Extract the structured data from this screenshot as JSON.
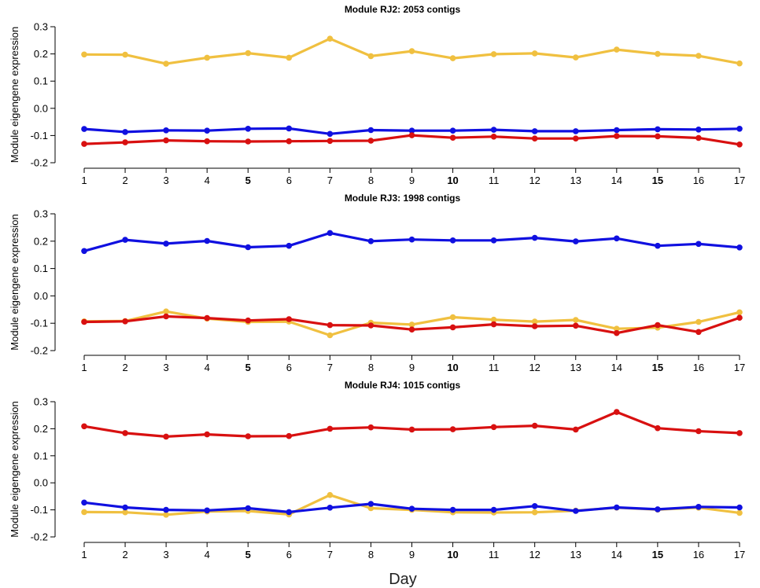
{
  "xlabel": "Day",
  "colors": {
    "yellow": "#f0c040",
    "blue": "#1010e0",
    "red": "#d81010"
  },
  "bold_x_ticks": [
    "5",
    "10",
    "15"
  ],
  "chart_data": [
    {
      "type": "line",
      "title": "Module RJ2: 2053 contigs",
      "ylabel": "Module eigengene expression",
      "xlabel": "",
      "x": [
        "1",
        "2",
        "3",
        "4",
        "5",
        "6",
        "7",
        "8",
        "9",
        "10",
        "11",
        "12",
        "13",
        "14",
        "15",
        "16",
        "17"
      ],
      "ylim": [
        -0.2,
        0.3
      ],
      "yticks": [
        "-0.2",
        "-0.1",
        "0.0",
        "0.1",
        "0.2",
        "0.3"
      ],
      "series": [
        {
          "color": "yellow",
          "values": [
            0.198,
            0.197,
            0.164,
            0.186,
            0.203,
            0.186,
            0.256,
            0.192,
            0.21,
            0.184,
            0.199,
            0.202,
            0.187,
            0.216,
            0.2,
            0.193,
            0.165
          ]
        },
        {
          "color": "blue",
          "values": [
            -0.076,
            -0.087,
            -0.081,
            -0.082,
            -0.075,
            -0.074,
            -0.094,
            -0.08,
            -0.082,
            -0.082,
            -0.079,
            -0.084,
            -0.084,
            -0.08,
            -0.077,
            -0.078,
            -0.075
          ]
        },
        {
          "color": "red",
          "values": [
            -0.131,
            -0.125,
            -0.118,
            -0.121,
            -0.122,
            -0.121,
            -0.12,
            -0.119,
            -0.099,
            -0.108,
            -0.104,
            -0.111,
            -0.111,
            -0.102,
            -0.103,
            -0.109,
            -0.133
          ]
        }
      ]
    },
    {
      "type": "line",
      "title": "Module RJ3: 1998 contigs",
      "ylabel": "Module eigengene expression",
      "xlabel": "",
      "x": [
        "1",
        "2",
        "3",
        "4",
        "5",
        "6",
        "7",
        "8",
        "9",
        "10",
        "11",
        "12",
        "13",
        "14",
        "15",
        "16",
        "17"
      ],
      "ylim": [
        -0.2,
        0.3
      ],
      "yticks": [
        "-0.2",
        "-0.1",
        "0.0",
        "0.1",
        "0.2",
        "0.3"
      ],
      "series": [
        {
          "color": "yellow",
          "values": [
            -0.093,
            -0.092,
            -0.057,
            -0.083,
            -0.095,
            -0.094,
            -0.144,
            -0.098,
            -0.105,
            -0.078,
            -0.087,
            -0.094,
            -0.088,
            -0.12,
            -0.116,
            -0.095,
            -0.06
          ]
        },
        {
          "color": "blue",
          "values": [
            0.164,
            0.205,
            0.191,
            0.201,
            0.178,
            0.183,
            0.23,
            0.2,
            0.206,
            0.203,
            0.203,
            0.212,
            0.199,
            0.21,
            0.183,
            0.19,
            0.177
          ]
        },
        {
          "color": "red",
          "values": [
            -0.095,
            -0.093,
            -0.075,
            -0.081,
            -0.09,
            -0.085,
            -0.107,
            -0.108,
            -0.123,
            -0.115,
            -0.104,
            -0.111,
            -0.109,
            -0.136,
            -0.107,
            -0.132,
            -0.08
          ]
        }
      ]
    },
    {
      "type": "line",
      "title": "Module RJ4: 1015 contigs",
      "ylabel": "Module eigengene expression",
      "xlabel": "",
      "x": [
        "1",
        "2",
        "3",
        "4",
        "5",
        "6",
        "7",
        "8",
        "9",
        "10",
        "11",
        "12",
        "13",
        "14",
        "15",
        "16",
        "17"
      ],
      "ylim": [
        -0.2,
        0.3
      ],
      "yticks": [
        "-0.2",
        "-0.1",
        "0.0",
        "0.1",
        "0.2",
        "0.3"
      ],
      "series": [
        {
          "color": "yellow",
          "values": [
            -0.108,
            -0.109,
            -0.118,
            -0.106,
            -0.104,
            -0.117,
            -0.045,
            -0.094,
            -0.1,
            -0.109,
            -0.11,
            -0.109,
            -0.103,
            -0.092,
            -0.099,
            -0.092,
            -0.111
          ]
        },
        {
          "color": "blue",
          "values": [
            -0.073,
            -0.091,
            -0.1,
            -0.102,
            -0.094,
            -0.108,
            -0.092,
            -0.078,
            -0.096,
            -0.1,
            -0.1,
            -0.086,
            -0.104,
            -0.091,
            -0.098,
            -0.089,
            -0.091
          ]
        },
        {
          "color": "red",
          "values": [
            0.209,
            0.184,
            0.171,
            0.179,
            0.172,
            0.173,
            0.2,
            0.205,
            0.197,
            0.198,
            0.206,
            0.211,
            0.197,
            0.262,
            0.202,
            0.191,
            0.184
          ]
        }
      ]
    }
  ]
}
